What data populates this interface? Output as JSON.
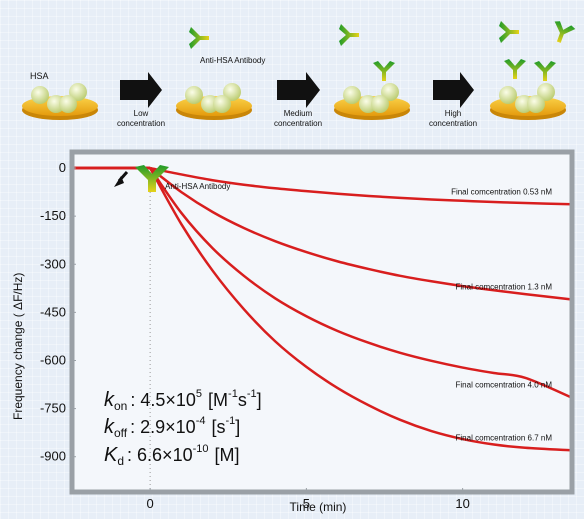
{
  "diagram": {
    "hsa_label": "HSA",
    "antibody_label": "Anti-HSA Antibody",
    "steps": [
      {
        "line1": "Low",
        "line2": "concentration"
      },
      {
        "line1": "Medium",
        "line2": "concentration"
      },
      {
        "line1": "High",
        "line2": "concentration"
      }
    ]
  },
  "colors": {
    "curve": "#d81e1e",
    "antibody_green": "#1e9b2a",
    "antibody_yellow": "#e6d21a",
    "disk": "#f4b416",
    "hsa": "#dde7a0"
  },
  "chart_data": {
    "type": "line",
    "xlabel": "Time (min)",
    "ylabel": "Frequency change ( ΔF/Hz)",
    "xlim": [
      -2.5,
      13.5
    ],
    "ylim": [
      -1010,
      50
    ],
    "xticks": [
      0,
      5,
      10
    ],
    "yticks": [
      0,
      -150,
      -300,
      -450,
      -600,
      -750,
      -900
    ],
    "injection_label": "Anti-HSA Antibody",
    "series": [
      {
        "name": "Final comcentration 0.53 nM",
        "x": [
          -2.5,
          0,
          1,
          2,
          3,
          4,
          5,
          6,
          7,
          8,
          9,
          10,
          11,
          12,
          13.5
        ],
        "y": [
          0,
          0,
          -20,
          -38,
          -52,
          -63,
          -72,
          -80,
          -87,
          -93,
          -98,
          -102,
          -106,
          -109,
          -113
        ]
      },
      {
        "name": "Final comcentration 1.3 nM",
        "x": [
          -2.5,
          0,
          1,
          2,
          3,
          4,
          5,
          6,
          7,
          8,
          9,
          10,
          11,
          12,
          13.5
        ],
        "y": [
          0,
          0,
          -75,
          -137,
          -187,
          -228,
          -262,
          -291,
          -315,
          -336,
          -353,
          -368,
          -381,
          -393,
          -410
        ]
      },
      {
        "name": "Final comcentration 4.0 nM",
        "x": [
          -2.5,
          0,
          1,
          2,
          3,
          4,
          5,
          6,
          7,
          8,
          9,
          10,
          11,
          12,
          13.5
        ],
        "y": [
          0,
          0,
          -140,
          -250,
          -336,
          -406,
          -462,
          -508,
          -545,
          -576,
          -601,
          -622,
          -639,
          -654,
          -716
        ]
      },
      {
        "name": "Final comcentration 6.7 nM",
        "x": [
          -2.5,
          0,
          1,
          2,
          3,
          4,
          5,
          6,
          7,
          8,
          9,
          10,
          11,
          12,
          13.5
        ],
        "y": [
          0,
          0,
          -175,
          -320,
          -440,
          -540,
          -620,
          -686,
          -740,
          -785,
          -820,
          -845,
          -862,
          -872,
          -880
        ]
      }
    ],
    "constants": [
      {
        "symbol": "k",
        "subscript": "on",
        "value": ": 4.5×10",
        "exponent": "5",
        "unit": "[M",
        "unit_exp1": "-1",
        "unit_mid": "s",
        "unit_exp2": "-1",
        "unit_end": "]"
      },
      {
        "symbol": "k",
        "subscript": "off",
        "value": ": 2.9×10",
        "exponent": "-4",
        "unit": "[s",
        "unit_exp1": "-1",
        "unit_end": "]"
      },
      {
        "symbol": "K",
        "subscript": "d",
        "value": ": 6.6×10",
        "exponent": "-10",
        "unit": "[M]"
      }
    ]
  }
}
